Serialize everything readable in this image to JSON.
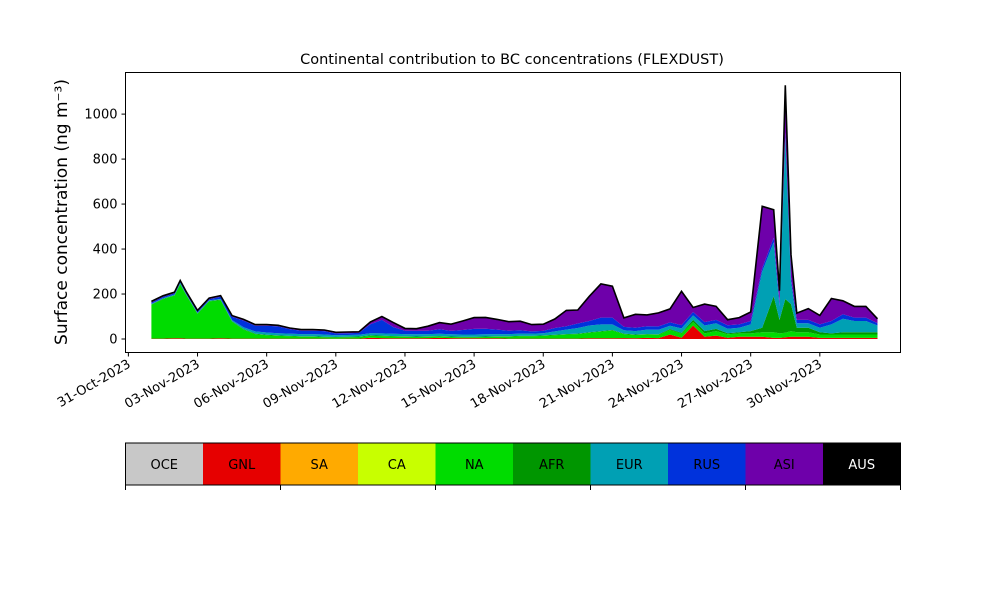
{
  "chart_data": {
    "type": "area",
    "stacked": true,
    "title": "Continental contribution to BC concentrations (FLEXDUST)",
    "ylabel": "Surface concentration (ng m⁻³)",
    "xlabel": "",
    "x_axis": {
      "kind": "date",
      "range": [
        "2023-10-30T21:00",
        "2023-12-03T12:00"
      ],
      "tick_labels": [
        "31-Oct-2023",
        "03-Nov-2023",
        "06-Nov-2023",
        "09-Nov-2023",
        "12-Nov-2023",
        "15-Nov-2023",
        "18-Nov-2023",
        "21-Nov-2023",
        "24-Nov-2023",
        "27-Nov-2023",
        "30-Nov-2023"
      ],
      "tick_dates": [
        "2023-10-31",
        "2023-11-03",
        "2023-11-06",
        "2023-11-09",
        "2023-11-12",
        "2023-11-15",
        "2023-11-18",
        "2023-11-21",
        "2023-11-24",
        "2023-11-27",
        "2023-11-30"
      ]
    },
    "y_axis": {
      "range": [
        -60,
        1185
      ],
      "tick_values": [
        0,
        200,
        400,
        600,
        800,
        1000
      ]
    },
    "grid": false,
    "total_line_color": "#000000",
    "x_dates": [
      "2023-11-01",
      "2023-11-01T12:00",
      "2023-11-02",
      "2023-11-02T06:00",
      "2023-11-02T12:00",
      "2023-11-03",
      "2023-11-03T12:00",
      "2023-11-04",
      "2023-11-04T12:00",
      "2023-11-05",
      "2023-11-05T12:00",
      "2023-11-06",
      "2023-11-06T12:00",
      "2023-11-07",
      "2023-11-07T12:00",
      "2023-11-08",
      "2023-11-08T12:00",
      "2023-11-09",
      "2023-11-09T12:00",
      "2023-11-10",
      "2023-11-10T12:00",
      "2023-11-11",
      "2023-11-11T12:00",
      "2023-11-12",
      "2023-11-12T12:00",
      "2023-11-13",
      "2023-11-13T12:00",
      "2023-11-14",
      "2023-11-14T12:00",
      "2023-11-15",
      "2023-11-15T12:00",
      "2023-11-16",
      "2023-11-16T12:00",
      "2023-11-17",
      "2023-11-17T12:00",
      "2023-11-18",
      "2023-11-18T12:00",
      "2023-11-19",
      "2023-11-19T12:00",
      "2023-11-20",
      "2023-11-20T12:00",
      "2023-11-21",
      "2023-11-21T12:00",
      "2023-11-22",
      "2023-11-22T12:00",
      "2023-11-23",
      "2023-11-23T12:00",
      "2023-11-24",
      "2023-11-24T12:00",
      "2023-11-25",
      "2023-11-25T12:00",
      "2023-11-26",
      "2023-11-26T12:00",
      "2023-11-27",
      "2023-11-27T12:00",
      "2023-11-28",
      "2023-11-28T06:00",
      "2023-11-28T12:00",
      "2023-11-28T18:00",
      "2023-11-29",
      "2023-11-29T12:00",
      "2023-11-30",
      "2023-11-30T12:00",
      "2023-12-01",
      "2023-12-01T12:00",
      "2023-12-02",
      "2023-12-02T12:00"
    ],
    "series": [
      {
        "name": "OCE",
        "color": "#c8c8c8",
        "values": [
          0,
          0,
          0,
          0,
          0,
          0,
          0,
          0,
          0,
          0,
          0,
          0,
          0,
          0,
          0,
          0,
          0,
          0,
          0,
          0,
          0,
          0,
          0,
          0,
          0,
          0,
          0,
          0,
          0,
          0,
          0,
          0,
          0,
          0,
          0,
          0,
          0,
          0,
          0,
          0,
          0,
          0,
          0,
          0,
          0,
          0,
          0,
          0,
          0,
          0,
          0,
          0,
          0,
          0,
          0,
          0,
          0,
          0,
          0,
          0,
          0,
          0,
          0,
          0,
          0,
          0,
          0
        ]
      },
      {
        "name": "GNL",
        "color": "#e60000",
        "values": [
          2,
          2,
          3,
          3,
          2,
          2,
          2,
          3,
          2,
          2,
          2,
          2,
          2,
          2,
          2,
          2,
          2,
          1,
          2,
          2,
          6,
          4,
          3,
          3,
          3,
          4,
          5,
          4,
          3,
          3,
          3,
          3,
          2,
          2,
          2,
          2,
          2,
          2,
          2,
          3,
          3,
          3,
          4,
          3,
          5,
          4,
          20,
          6,
          60,
          10,
          15,
          6,
          10,
          10,
          10,
          5,
          5,
          8,
          10,
          10,
          10,
          5,
          5,
          5,
          5,
          5,
          5
        ]
      },
      {
        "name": "SA",
        "color": "#ffaa00",
        "values": [
          0,
          0,
          0,
          0,
          0,
          0,
          0,
          0,
          0,
          0,
          0,
          0,
          0,
          0,
          0,
          0,
          0,
          0,
          0,
          0,
          0,
          0,
          0,
          0,
          0,
          0,
          0,
          0,
          0,
          0,
          0,
          0,
          0,
          0,
          0,
          0,
          0,
          0,
          0,
          0,
          0,
          0,
          0,
          0,
          0,
          0,
          0,
          0,
          0,
          0,
          0,
          0,
          0,
          0,
          0,
          0,
          0,
          0,
          0,
          0,
          0,
          0,
          0,
          0,
          0,
          0,
          0
        ]
      },
      {
        "name": "CA",
        "color": "#c8ff00",
        "values": [
          0,
          0,
          0,
          0,
          0,
          0,
          0,
          0,
          0,
          0,
          0,
          0,
          0,
          0,
          0,
          0,
          0,
          0,
          0,
          0,
          0,
          0,
          0,
          0,
          0,
          0,
          0,
          0,
          0,
          0,
          0,
          0,
          0,
          0,
          0,
          0,
          0,
          0,
          0,
          0,
          0,
          0,
          0,
          0,
          0,
          0,
          0,
          0,
          0,
          0,
          0,
          0,
          0,
          0,
          0,
          0,
          0,
          0,
          0,
          0,
          0,
          0,
          0,
          0,
          0,
          0,
          0
        ]
      },
      {
        "name": "NA",
        "color": "#00dc00",
        "values": [
          150,
          175,
          190,
          240,
          195,
          110,
          165,
          170,
          75,
          40,
          20,
          15,
          12,
          10,
          8,
          8,
          6,
          6,
          6,
          7,
          8,
          9,
          8,
          7,
          6,
          6,
          6,
          5,
          5,
          5,
          6,
          7,
          8,
          10,
          10,
          12,
          15,
          18,
          20,
          25,
          30,
          35,
          18,
          15,
          15,
          15,
          20,
          18,
          15,
          15,
          20,
          15,
          15,
          15,
          20,
          25,
          20,
          20,
          25,
          20,
          20,
          15,
          15,
          15,
          15,
          15,
          15
        ]
      },
      {
        "name": "AFR",
        "color": "#009600",
        "values": [
          2,
          2,
          2,
          2,
          2,
          2,
          2,
          2,
          2,
          2,
          2,
          2,
          2,
          2,
          2,
          2,
          2,
          2,
          2,
          2,
          2,
          2,
          2,
          2,
          2,
          2,
          2,
          2,
          2,
          2,
          2,
          2,
          2,
          2,
          2,
          2,
          2,
          2,
          2,
          2,
          2,
          2,
          2,
          2,
          2,
          2,
          4,
          3,
          10,
          10,
          10,
          5,
          5,
          10,
          20,
          160,
          60,
          150,
          120,
          20,
          20,
          10,
          5,
          10,
          10,
          10,
          10
        ]
      },
      {
        "name": "EUR",
        "color": "#00a0b4",
        "values": [
          3,
          3,
          3,
          5,
          3,
          3,
          3,
          3,
          5,
          8,
          10,
          10,
          10,
          10,
          10,
          10,
          10,
          8,
          8,
          8,
          10,
          10,
          10,
          10,
          10,
          10,
          10,
          10,
          10,
          10,
          10,
          10,
          10,
          10,
          10,
          10,
          15,
          20,
          25,
          30,
          30,
          25,
          15,
          15,
          20,
          20,
          15,
          20,
          20,
          25,
          25,
          20,
          20,
          30,
          250,
          240,
          60,
          720,
          100,
          20,
          20,
          20,
          40,
          60,
          50,
          50,
          30
        ]
      },
      {
        "name": "RUS",
        "color": "#0032dc",
        "values": [
          5,
          5,
          5,
          5,
          5,
          5,
          5,
          10,
          15,
          30,
          25,
          30,
          30,
          20,
          15,
          15,
          15,
          8,
          8,
          8,
          40,
          60,
          30,
          15,
          15,
          15,
          20,
          15,
          20,
          25,
          25,
          20,
          15,
          15,
          10,
          10,
          15,
          15,
          20,
          20,
          30,
          30,
          15,
          15,
          15,
          15,
          15,
          15,
          15,
          15,
          15,
          15,
          15,
          15,
          15,
          20,
          20,
          20,
          20,
          15,
          15,
          15,
          15,
          20,
          15,
          15,
          10
        ]
      },
      {
        "name": "ASI",
        "color": "#6e00aa",
        "values": [
          5,
          5,
          5,
          5,
          5,
          5,
          5,
          5,
          5,
          5,
          5,
          5,
          5,
          5,
          5,
          5,
          5,
          5,
          5,
          5,
          10,
          15,
          20,
          10,
          10,
          20,
          30,
          30,
          40,
          50,
          50,
          45,
          40,
          40,
          30,
          30,
          40,
          70,
          60,
          110,
          150,
          140,
          40,
          60,
          50,
          60,
          60,
          150,
          20,
          80,
          60,
          25,
          30,
          40,
          275,
          125,
          50,
          210,
          100,
          30,
          50,
          40,
          100,
          60,
          50,
          50,
          20
        ]
      },
      {
        "name": "AUS",
        "color": "#000000",
        "values": [
          0,
          0,
          0,
          0,
          0,
          0,
          0,
          0,
          0,
          0,
          0,
          0,
          0,
          0,
          0,
          0,
          0,
          0,
          0,
          0,
          0,
          0,
          0,
          0,
          0,
          0,
          0,
          0,
          0,
          0,
          0,
          0,
          0,
          0,
          0,
          0,
          0,
          0,
          0,
          0,
          0,
          0,
          0,
          0,
          0,
          0,
          0,
          0,
          0,
          0,
          0,
          0,
          0,
          0,
          0,
          0,
          0,
          0,
          0,
          0,
          0,
          0,
          0,
          0,
          0,
          0,
          0
        ]
      }
    ],
    "legend": {
      "placement": "bottom colorbar",
      "labels": [
        "OCE",
        "GNL",
        "SA",
        "CA",
        "NA",
        "AFR",
        "EUR",
        "RUS",
        "ASI",
        "AUS"
      ],
      "label_colors": [
        "#000000",
        "#000000",
        "#000000",
        "#000000",
        "#000000",
        "#000000",
        "#000000",
        "#000000",
        "#000000",
        "#ffffff"
      ]
    }
  }
}
